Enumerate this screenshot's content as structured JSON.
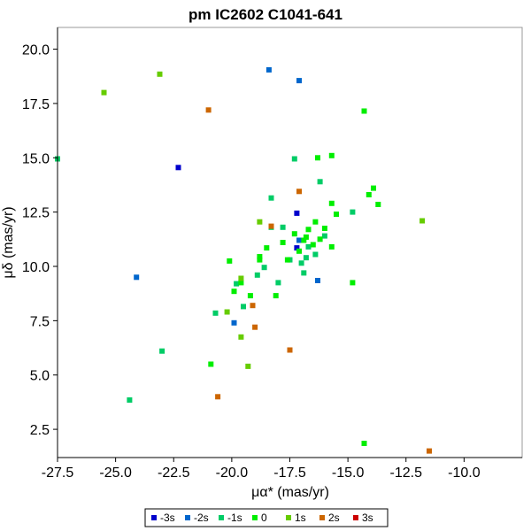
{
  "chart_data": {
    "type": "scatter",
    "title": "pm IC2602  C1041-641",
    "xlabel": "μα* (mas/yr)",
    "ylabel": "μδ (mas/yr)",
    "xlim": [
      -27.5,
      -7.5
    ],
    "ylim": [
      1.2,
      21
    ],
    "x_ticks": [
      -27.5,
      -25.0,
      -22.5,
      -20.0,
      -17.5,
      -15.0,
      -12.5,
      -10.0
    ],
    "x_tick_labels": [
      "-27.5",
      "-25.0",
      "-22.5",
      "-20.0",
      "-17.5",
      "-15.0",
      "-12.5",
      "-10.0"
    ],
    "y_ticks": [
      2.5,
      5.0,
      7.5,
      10.0,
      12.5,
      15.0,
      17.5,
      20.0
    ],
    "y_tick_labels": [
      "2.5",
      "5.0",
      "7.5",
      "10.0",
      "12.5",
      "15.0",
      "17.5",
      "20.0"
    ],
    "grid": false,
    "legend_position": "bottom-center",
    "series": [
      {
        "name": "-3s",
        "color": "#0000cc",
        "points": [
          [
            -22.3,
            14.55
          ],
          [
            -17.2,
            10.85
          ],
          [
            -17.2,
            12.45
          ]
        ]
      },
      {
        "name": "-2s",
        "color": "#0066cc",
        "points": [
          [
            -24.1,
            9.5
          ],
          [
            -18.4,
            19.05
          ],
          [
            -17.1,
            18.55
          ],
          [
            -19.9,
            7.4
          ],
          [
            -16.3,
            9.35
          ],
          [
            -17.1,
            11.2
          ]
        ]
      },
      {
        "name": "-1s",
        "color": "#00cc66",
        "points": [
          [
            -24.4,
            3.85
          ],
          [
            -23.0,
            6.1
          ],
          [
            -20.7,
            7.85
          ],
          [
            -19.8,
            9.2
          ],
          [
            -19.5,
            8.15
          ],
          [
            -18.9,
            9.6
          ],
          [
            -18.6,
            9.95
          ],
          [
            -18.3,
            13.15
          ],
          [
            -18.0,
            9.25
          ],
          [
            -17.8,
            11.8
          ],
          [
            -17.5,
            10.3
          ],
          [
            -17.3,
            14.95
          ],
          [
            -17.0,
            10.15
          ],
          [
            -16.9,
            9.7
          ],
          [
            -16.7,
            10.9
          ],
          [
            -16.4,
            10.55
          ],
          [
            -16.2,
            13.9
          ],
          [
            -16.0,
            11.4
          ],
          [
            -14.8,
            12.5
          ],
          [
            -27.5,
            14.95
          ],
          [
            -18.3,
            11.8
          ],
          [
            -16.8,
            10.4
          ]
        ]
      },
      {
        "name": "0",
        "color": "#00ee00",
        "points": [
          [
            -20.1,
            10.25
          ],
          [
            -19.9,
            8.85
          ],
          [
            -19.6,
            9.25
          ],
          [
            -19.2,
            8.65
          ],
          [
            -18.8,
            10.45
          ],
          [
            -18.5,
            10.85
          ],
          [
            -18.1,
            8.65
          ],
          [
            -17.8,
            11.1
          ],
          [
            -17.6,
            10.3
          ],
          [
            -17.3,
            11.5
          ],
          [
            -17.1,
            10.7
          ],
          [
            -16.9,
            11.2
          ],
          [
            -16.7,
            11.7
          ],
          [
            -16.5,
            11.0
          ],
          [
            -16.4,
            12.05
          ],
          [
            -16.2,
            11.25
          ],
          [
            -16.0,
            11.75
          ],
          [
            -15.7,
            12.9
          ],
          [
            -15.5,
            12.4
          ],
          [
            -15.7,
            15.1
          ],
          [
            -16.3,
            15.0
          ],
          [
            -13.9,
            13.6
          ],
          [
            -14.1,
            13.3
          ],
          [
            -13.7,
            12.85
          ],
          [
            -14.3,
            17.15
          ],
          [
            -14.8,
            9.25
          ],
          [
            -20.9,
            5.5
          ],
          [
            -14.3,
            1.85
          ],
          [
            -15.7,
            10.9
          ],
          [
            -18.8,
            10.3
          ],
          [
            -16.8,
            11.35
          ]
        ]
      },
      {
        "name": "1s",
        "color": "#66cc00",
        "points": [
          [
            -25.5,
            18.0
          ],
          [
            -23.1,
            18.85
          ],
          [
            -19.6,
            6.75
          ],
          [
            -19.6,
            9.45
          ],
          [
            -19.3,
            5.4
          ],
          [
            -18.8,
            12.05
          ],
          [
            -11.8,
            12.1
          ],
          [
            -20.2,
            7.9
          ]
        ]
      },
      {
        "name": "2s",
        "color": "#cc6600",
        "points": [
          [
            -21.0,
            17.2
          ],
          [
            -20.6,
            4.0
          ],
          [
            -19.1,
            8.2
          ],
          [
            -19.0,
            7.2
          ],
          [
            -18.3,
            11.85
          ],
          [
            -17.5,
            6.15
          ],
          [
            -17.1,
            13.45
          ],
          [
            -11.5,
            1.5
          ]
        ]
      },
      {
        "name": "3s",
        "color": "#cc0000",
        "points": []
      }
    ]
  }
}
